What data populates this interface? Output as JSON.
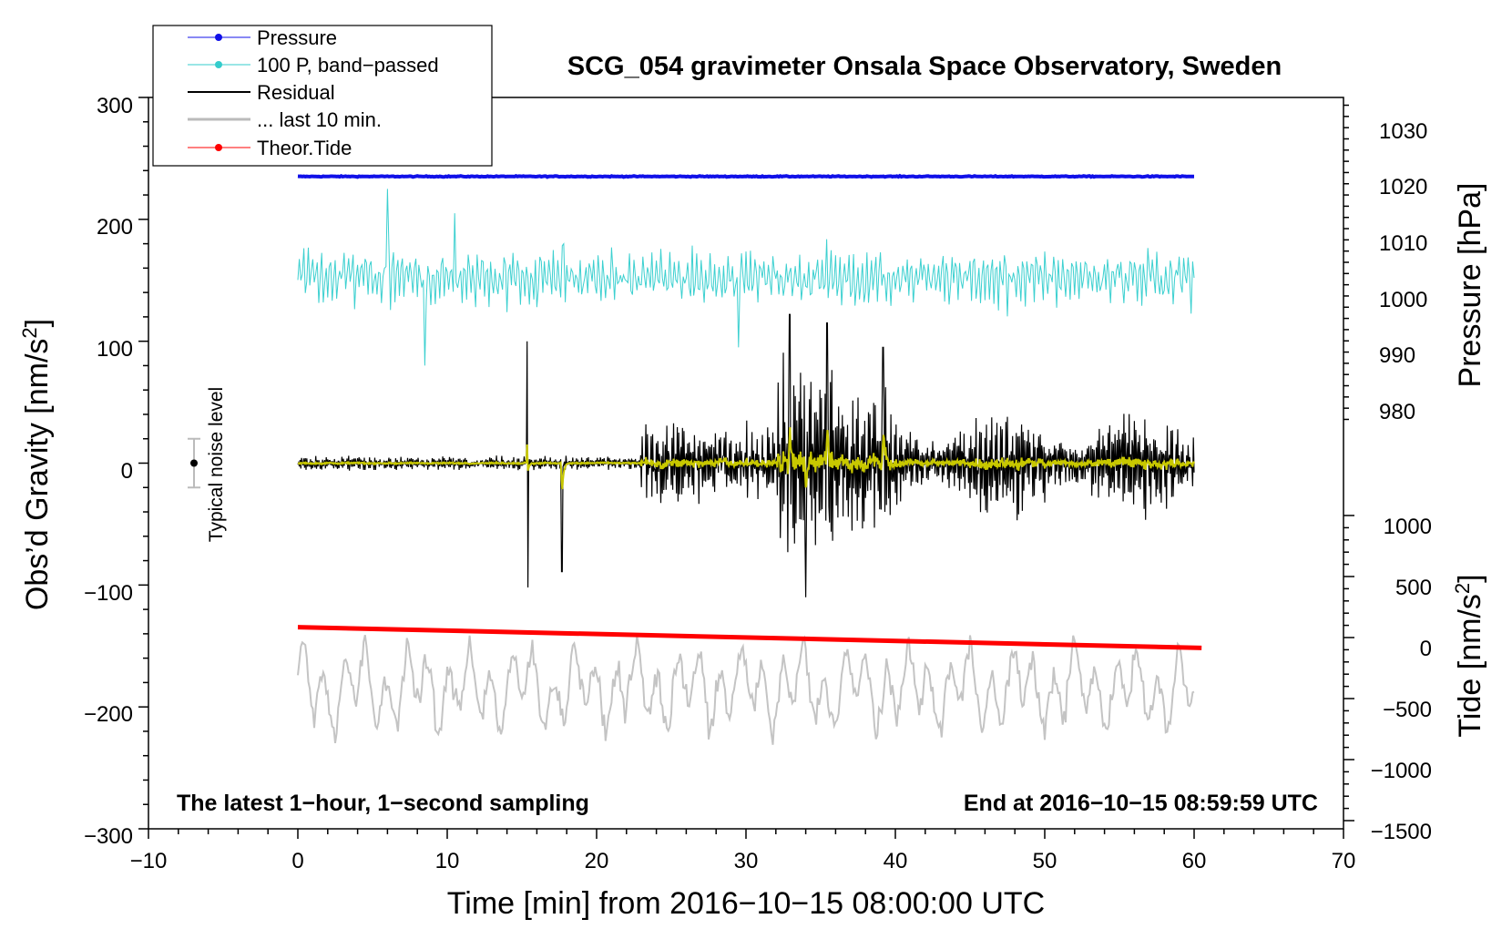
{
  "chart_data": {
    "type": "line",
    "title": "SCG_054 gravimeter Onsala Space Observatory, Sweden",
    "xlabel": "Time [min] from 2016−10−15 08:00:00 UTC",
    "x_ticks": [
      "−10",
      "0",
      "10",
      "20",
      "30",
      "40",
      "50",
      "60",
      "70"
    ],
    "xlim": [
      -10,
      70
    ],
    "left_axis": {
      "label": "Obs’d Gravity [nm/s",
      "label_sup": "2",
      "label_end": "]",
      "ylim": [
        -300,
        300
      ],
      "ticks": [
        "300",
        "200",
        "100",
        "0",
        "−100",
        "−200",
        "−300"
      ]
    },
    "right_pressure_axis": {
      "label": "Pressure [hPa]",
      "ticks": [
        "1030",
        "1020",
        "1010",
        "1000",
        "990",
        "980"
      ],
      "tick_values": [
        1030,
        1020,
        1010,
        1000,
        990,
        980
      ]
    },
    "right_tide_axis": {
      "label": "Tide [nm/s",
      "label_sup": "2",
      "label_end": "]",
      "ticks": [
        "1000",
        "500",
        "0",
        "−500",
        "−1000",
        "−1500"
      ],
      "tick_values": [
        1000,
        500,
        0,
        -500,
        -1000,
        -1500
      ]
    },
    "legend": [
      {
        "label": "Pressure",
        "color": "#1010e8",
        "marker": true
      },
      {
        "label": "100 P, band−passed",
        "color": "#33cccc",
        "marker": true
      },
      {
        "label": "Residual",
        "color": "#000000",
        "marker": false
      },
      {
        "label": "... last 10 min.",
        "color": "#bbbbbb",
        "marker": false
      },
      {
        "label": "Theor.Tide",
        "color": "#ff0000",
        "marker": true
      }
    ],
    "legend_position": "top-left",
    "noise_label": "Typical noise level",
    "noise_half_range": 20,
    "footer_left": "The latest 1−hour, 1−second sampling",
    "footer_right": "End at 2016−10−15 08:59:59 UTC",
    "series": [
      {
        "name": "Pressure",
        "color": "#1010e8",
        "units": "hPa",
        "x_range": [
          0,
          60
        ],
        "value_approx": 1020.3
      },
      {
        "name": "100 P, band-passed",
        "color": "#33cccc",
        "units": "nm/s2 (plot units, offset)",
        "center": 152,
        "typical_amplitude": 20,
        "extremes": [
          225,
          80
        ]
      },
      {
        "name": "Residual",
        "color": "#000000",
        "units": "nm/s2",
        "x_range": [
          0,
          60
        ],
        "quiet_amplitude_before_min23": 5,
        "max": 120,
        "min": -110
      },
      {
        "name": "Residual smoothed",
        "color": "#cccc00",
        "units": "nm/s2",
        "x_range": [
          0,
          60
        ]
      },
      {
        "name": "... last 10 min.",
        "color": "#bbbbbb",
        "units": "nm/s2 (plot units, offset)",
        "center": -185,
        "range": [
          -243,
          -117
        ]
      },
      {
        "name": "Theor.Tide",
        "color": "#ff0000",
        "units": "nm/s2",
        "x": [
          0,
          60.5
        ],
        "y": [
          85,
          -85
        ]
      }
    ]
  }
}
